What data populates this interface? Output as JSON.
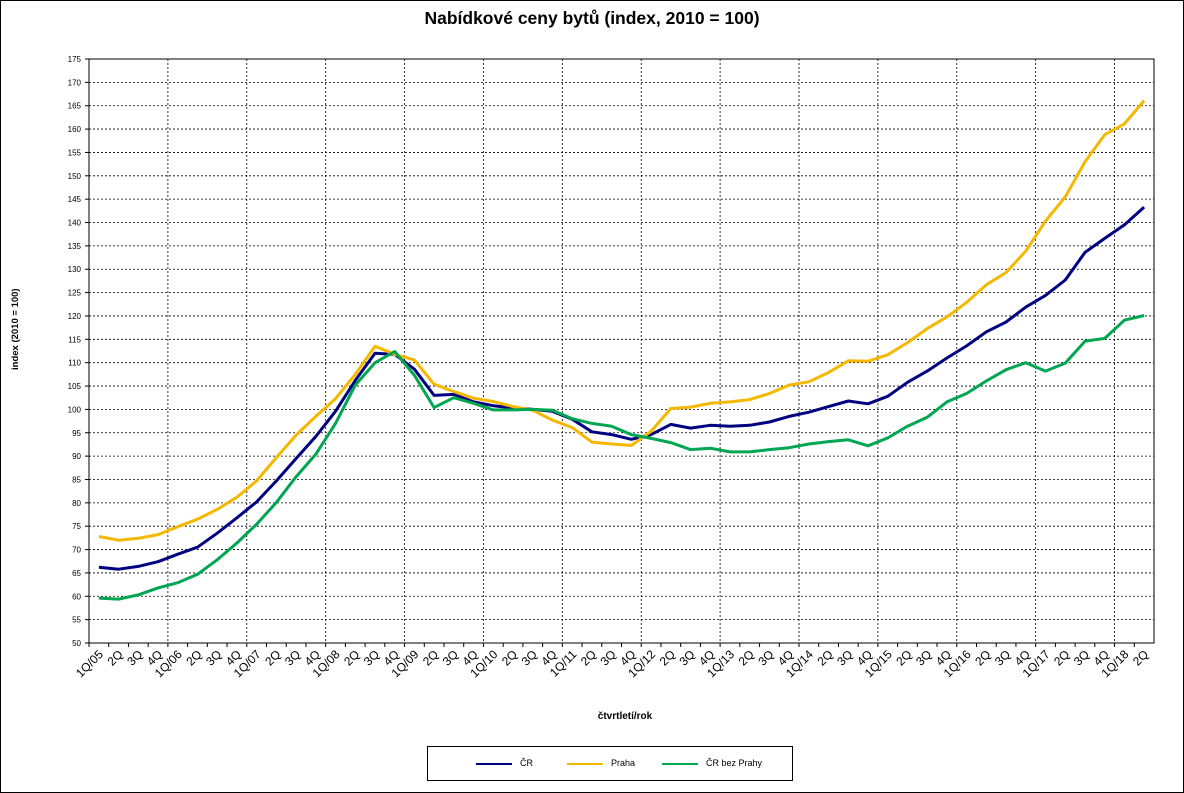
{
  "chart_data": {
    "type": "line",
    "title": "Nabídkové ceny bytů (index, 2010 = 100)",
    "xlabel": "čtvrtletí/rok",
    "ylabel": "index (2010 = 100)",
    "ylim": [
      50,
      175
    ],
    "ytick_step": 5,
    "grid": true,
    "legend_position": "bottom",
    "categories": [
      "1Q/05",
      "2Q",
      "3Q",
      "4Q",
      "1Q/06",
      "2Q",
      "3Q",
      "4Q",
      "1Q/07",
      "2Q",
      "3Q",
      "4Q",
      "1Q/08",
      "2Q",
      "3Q",
      "4Q",
      "1Q/09",
      "2Q",
      "3Q",
      "4Q",
      "1Q/10",
      "2Q",
      "3Q",
      "4Q",
      "1Q/11",
      "2Q",
      "3Q",
      "4Q",
      "1Q/12",
      "2Q",
      "3Q",
      "4Q",
      "1Q/13",
      "2Q",
      "3Q",
      "4Q",
      "1Q/14",
      "2Q",
      "3Q",
      "4Q",
      "1Q/15",
      "2Q",
      "3Q",
      "4Q",
      "1Q/16",
      "2Q",
      "3Q",
      "4Q",
      "1Q/17",
      "2Q",
      "3Q",
      "4Q",
      "1Q/18",
      "2Q"
    ],
    "series": [
      {
        "name": "ČR",
        "color": "#000080",
        "values": [
          66.2,
          65.8,
          66.4,
          67.4,
          69.0,
          70.5,
          73.5,
          76.8,
          80.2,
          84.7,
          89.5,
          94.2,
          99.6,
          106.2,
          112.0,
          111.8,
          108.6,
          103.0,
          103.2,
          101.6,
          100.8,
          100.3,
          100.0,
          99.6,
          97.9,
          95.2,
          94.6,
          93.6,
          94.6,
          96.8,
          96.0,
          96.6,
          96.4,
          96.6,
          97.3,
          98.5,
          99.4,
          100.6,
          101.8,
          101.2,
          102.8,
          105.8,
          108.2,
          111.0,
          113.6,
          116.6,
          118.7,
          121.9,
          124.4,
          127.7,
          133.6,
          136.6,
          139.5,
          143.3
        ]
      },
      {
        "name": "Praha",
        "color": "#f5b800",
        "values": [
          72.8,
          72.0,
          72.4,
          73.2,
          74.9,
          76.5,
          78.6,
          81.2,
          84.7,
          89.7,
          94.5,
          98.5,
          102.3,
          107.5,
          113.5,
          111.8,
          110.6,
          105.4,
          103.8,
          102.4,
          101.7,
          100.6,
          99.8,
          97.7,
          96.1,
          93.0,
          92.6,
          92.3,
          95.3,
          100.2,
          100.5,
          101.3,
          101.6,
          102.1,
          103.4,
          105.2,
          105.9,
          107.9,
          110.4,
          110.3,
          111.7,
          114.3,
          117.3,
          119.8,
          122.9,
          126.7,
          129.3,
          133.9,
          140.3,
          145.5,
          153.0,
          158.8,
          161.1,
          166.1
        ]
      },
      {
        "name": "ČR bez Prahy",
        "color": "#00a651",
        "values": [
          59.6,
          59.4,
          60.3,
          61.8,
          62.9,
          64.7,
          67.8,
          71.4,
          75.4,
          80.1,
          85.6,
          90.4,
          97.0,
          105.2,
          110.0,
          112.4,
          107.3,
          100.4,
          102.5,
          101.3,
          99.9,
          99.9,
          100.0,
          99.8,
          98.0,
          97.0,
          96.4,
          94.6,
          93.8,
          92.9,
          91.4,
          91.7,
          90.9,
          90.9,
          91.4,
          91.8,
          92.6,
          93.1,
          93.5,
          92.2,
          93.9,
          96.4,
          98.3,
          101.6,
          103.4,
          106.1,
          108.5,
          110.0,
          108.2,
          109.9,
          114.6,
          115.2,
          119.1,
          120.1
        ]
      }
    ]
  }
}
